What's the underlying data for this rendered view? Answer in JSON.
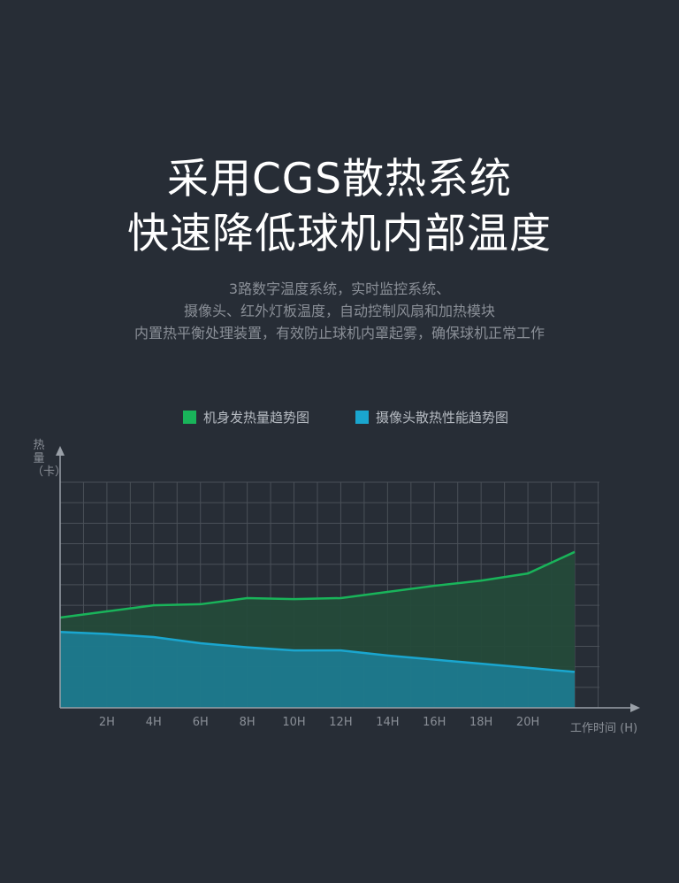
{
  "headline": {
    "line1": "采用CGS散热系统",
    "line2": "快速降低球机内部温度"
  },
  "description": {
    "line1": "3路数字温度系统，实时监控系统、",
    "line2": "摄像头、红外灯板温度，自动控制风扇和加热模块",
    "line3": "内置热平衡处理装置，有效防止球机内罩起雾，确保球机正常工作"
  },
  "colors": {
    "background": "#272d36",
    "grid": "#4a5058",
    "axis": "#9aa0a8",
    "series1_line": "#19b45a",
    "series1_fill": "#244a3a",
    "series2_line": "#1aa6cf",
    "series2_fill": "#1e7a8e"
  },
  "chart_data": {
    "type": "area",
    "title": "",
    "xlabel": "工作时间 (H)",
    "ylabel": "热量（卡）",
    "legend_position": "top-center",
    "grid": true,
    "x_tick_labels": [
      "2H",
      "4H",
      "6H",
      "8H",
      "10H",
      "12H",
      "14H",
      "16H",
      "18H",
      "20H"
    ],
    "x_tick_values": [
      2,
      4,
      6,
      8,
      10,
      12,
      14,
      16,
      18,
      20
    ],
    "xlim": [
      0,
      24
    ],
    "ylim": [
      0,
      11
    ],
    "x": [
      0,
      2,
      4,
      6,
      8,
      10,
      12,
      14,
      16,
      18,
      20,
      22
    ],
    "series": [
      {
        "name": "机身发热量趋势图",
        "values": [
          4.4,
          4.7,
          5.0,
          5.05,
          5.35,
          5.3,
          5.35,
          5.65,
          5.95,
          6.2,
          6.55,
          7.6
        ]
      },
      {
        "name": "摄像头散热性能趋势图",
        "values": [
          3.7,
          3.6,
          3.45,
          3.15,
          2.95,
          2.8,
          2.8,
          2.55,
          2.35,
          2.15,
          1.95,
          1.75
        ]
      }
    ]
  }
}
